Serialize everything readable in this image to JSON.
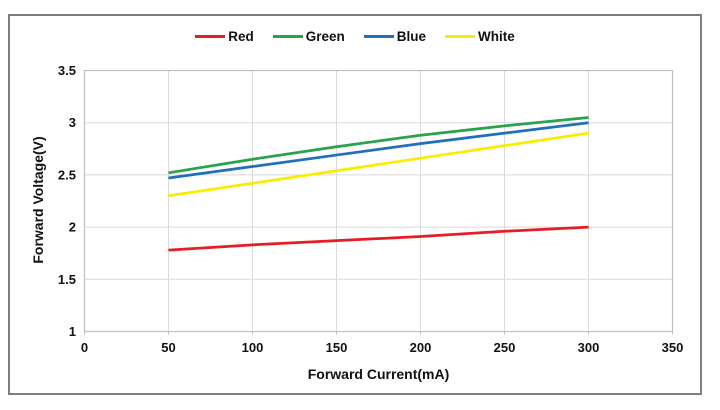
{
  "chart_data": {
    "type": "line",
    "title": "",
    "xlabel": "Forward Current(mA)",
    "ylabel": "Forward Voltage(V)",
    "x": [
      50,
      100,
      150,
      200,
      250,
      300
    ],
    "series": [
      {
        "name": "Red",
        "color": "#e81d24",
        "values": [
          1.78,
          1.83,
          1.87,
          1.91,
          1.96,
          2.0
        ]
      },
      {
        "name": "Green",
        "color": "#27a34d",
        "values": [
          2.52,
          2.65,
          2.77,
          2.88,
          2.97,
          3.05
        ]
      },
      {
        "name": "Blue",
        "color": "#2170bb",
        "values": [
          2.47,
          2.58,
          2.69,
          2.8,
          2.9,
          3.0
        ]
      },
      {
        "name": "White",
        "color": "#f9ee00",
        "values": [
          2.3,
          2.42,
          2.54,
          2.66,
          2.78,
          2.9
        ]
      }
    ],
    "xlim": [
      0,
      350
    ],
    "ylim": [
      1,
      3.5
    ],
    "x_ticks": [
      0,
      50,
      100,
      150,
      200,
      250,
      300,
      350
    ],
    "y_ticks": [
      1,
      1.5,
      2,
      2.5,
      3,
      3.5
    ],
    "grid": true,
    "legend_position": "top"
  },
  "colors": {
    "figure_border": "#7f7f7f",
    "plot_border": "#bfbfbf",
    "gridline": "#d9d9d9",
    "text": "#111111"
  }
}
